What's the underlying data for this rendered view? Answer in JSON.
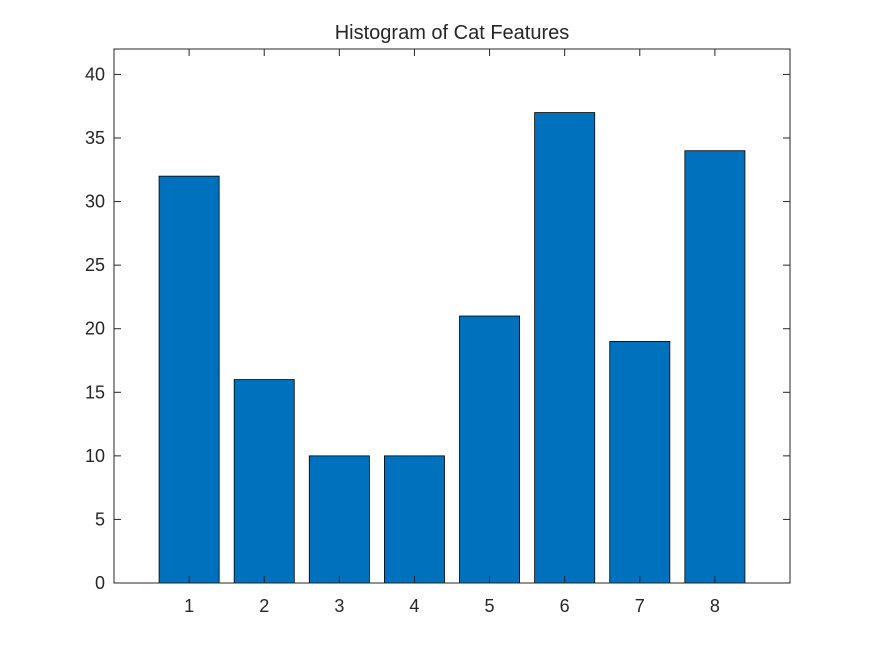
{
  "chart_data": {
    "type": "bar",
    "title": "Histogram of Cat Features",
    "xlabel": "",
    "ylabel": "",
    "categories": [
      "1",
      "2",
      "3",
      "4",
      "5",
      "6",
      "7",
      "8"
    ],
    "values": [
      32,
      16,
      10,
      10,
      21,
      37,
      19,
      34
    ],
    "xlim": [
      0,
      9
    ],
    "ylim": [
      0,
      42
    ],
    "yticks": [
      0,
      5,
      10,
      15,
      20,
      25,
      30,
      35,
      40
    ],
    "grid": false,
    "bar_color": "#0072BD",
    "bar_edge_color": "#000000"
  }
}
